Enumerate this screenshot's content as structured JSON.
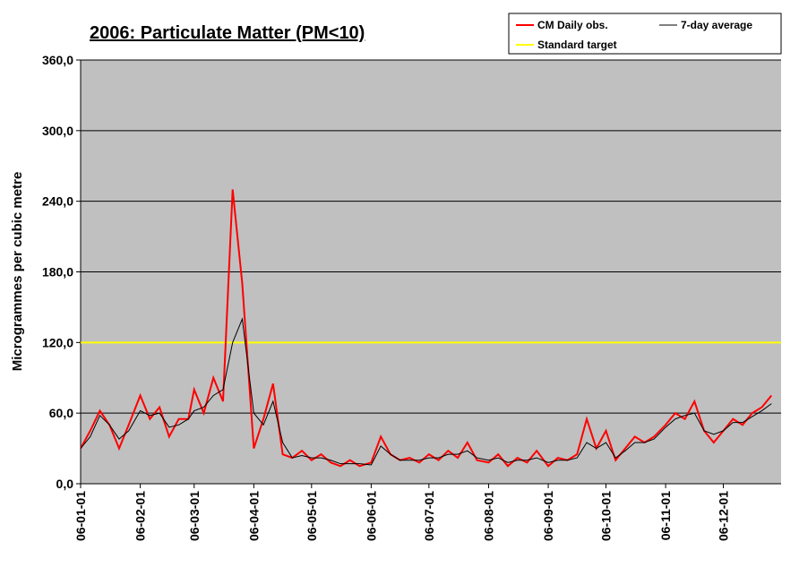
{
  "chart_data": {
    "type": "line",
    "title": "2006: Particulate Matter (PM<10)",
    "y_label": "Microgrammes per cubic metre",
    "x": [
      "06-01-01",
      "06-01-06",
      "06-01-11",
      "06-01-16",
      "06-01-21",
      "06-01-26",
      "06-02-01",
      "06-02-06",
      "06-02-11",
      "06-02-16",
      "06-02-21",
      "06-02-26",
      "06-03-01",
      "06-03-06",
      "06-03-11",
      "06-03-16",
      "06-03-21",
      "06-03-26",
      "06-04-01",
      "06-04-06",
      "06-04-11",
      "06-04-16",
      "06-04-21",
      "06-04-26",
      "06-05-01",
      "06-05-06",
      "06-05-11",
      "06-05-16",
      "06-05-21",
      "06-05-26",
      "06-06-01",
      "06-06-06",
      "06-06-11",
      "06-06-16",
      "06-06-21",
      "06-06-26",
      "06-07-01",
      "06-07-06",
      "06-07-11",
      "06-07-16",
      "06-07-21",
      "06-07-26",
      "06-08-01",
      "06-08-06",
      "06-08-11",
      "06-08-16",
      "06-08-21",
      "06-08-26",
      "06-09-01",
      "06-09-06",
      "06-09-11",
      "06-09-16",
      "06-09-21",
      "06-09-26",
      "06-10-01",
      "06-10-06",
      "06-10-11",
      "06-10-16",
      "06-10-21",
      "06-10-26",
      "06-11-01",
      "06-11-06",
      "06-11-11",
      "06-11-16",
      "06-11-21",
      "06-11-26",
      "06-12-01",
      "06-12-06",
      "06-12-11",
      "06-12-16",
      "06-12-21",
      "06-12-26"
    ],
    "series": [
      {
        "name": "CM Daily obs.",
        "color": "#ff0000",
        "values": [
          30,
          45,
          62,
          50,
          30,
          50,
          75,
          55,
          65,
          40,
          55,
          55,
          80,
          60,
          90,
          70,
          250,
          170,
          30,
          55,
          85,
          25,
          22,
          28,
          20,
          25,
          18,
          15,
          20,
          15,
          18,
          40,
          25,
          20,
          22,
          18,
          25,
          20,
          28,
          22,
          35,
          20,
          18,
          25,
          15,
          22,
          18,
          28,
          15,
          22,
          20,
          25,
          55,
          30,
          45,
          20,
          30,
          40,
          35,
          40,
          50,
          60,
          55,
          70,
          45,
          35,
          45,
          55,
          50,
          60,
          65,
          75
        ]
      },
      {
        "name": "7-day average",
        "color": "#000000",
        "values": [
          30,
          40,
          58,
          50,
          38,
          45,
          62,
          58,
          60,
          48,
          50,
          55,
          62,
          65,
          75,
          80,
          120,
          140,
          60,
          50,
          70,
          35,
          22,
          24,
          22,
          22,
          20,
          17,
          17,
          17,
          16,
          32,
          25,
          20,
          20,
          20,
          22,
          22,
          25,
          25,
          28,
          22,
          20,
          22,
          18,
          20,
          20,
          22,
          18,
          20,
          20,
          22,
          35,
          30,
          35,
          22,
          28,
          35,
          35,
          38,
          48,
          55,
          58,
          60,
          45,
          42,
          45,
          52,
          52,
          57,
          62,
          68
        ]
      }
    ],
    "reference_lines": [
      {
        "name": "Standard target",
        "color": "#ffff00",
        "value": 120
      }
    ],
    "xlim": [
      "06-01-01",
      "06-12-31"
    ],
    "xticks": [
      "06-01-01",
      "06-02-01",
      "06-03-01",
      "06-04-01",
      "06-05-01",
      "06-06-01",
      "06-07-01",
      "06-08-01",
      "06-09-01",
      "06-10-01",
      "06-11-01",
      "06-12-01"
    ],
    "ylim": [
      0,
      360
    ],
    "yticks": [
      {
        "value": 0,
        "label": "0,0"
      },
      {
        "value": 60,
        "label": "60,0"
      },
      {
        "value": 120,
        "label": "120,0"
      },
      {
        "value": 180,
        "label": "180,0"
      },
      {
        "value": 240,
        "label": "240,0"
      },
      {
        "value": 300,
        "label": "300,0"
      },
      {
        "value": 360,
        "label": "360,0"
      }
    ],
    "grid": true,
    "plot_background": "#c0c0c0",
    "legend": "top-right"
  }
}
